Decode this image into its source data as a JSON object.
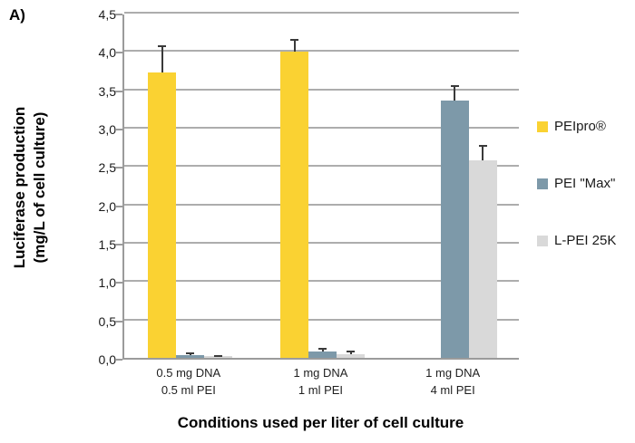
{
  "panel_label": "A)",
  "chart_data": {
    "type": "bar",
    "title": "",
    "xlabel": "Conditions used per liter of cell culture",
    "ylabel": "Luciferase production (mg/L of cell culture)",
    "ylabel_lines": [
      "Luciferase production",
      "(mg/L of cell culture)"
    ],
    "ylim": [
      0,
      4.5
    ],
    "ytick_step": 0.5,
    "ytick_labels": [
      "0,0",
      "0,5",
      "1,0",
      "1,5",
      "2,0",
      "2,5",
      "3,0",
      "3,5",
      "4,0",
      "4,5"
    ],
    "decimal_separator": ",",
    "grid": true,
    "legend_position": "right",
    "categories": [
      [
        "0.5 mg DNA",
        "0.5 ml PEI"
      ],
      [
        "1 mg DNA",
        "1 ml PEI"
      ],
      [
        "1 mg DNA",
        "4 ml PEI"
      ]
    ],
    "series": [
      {
        "name": "PEIpro®",
        "color": "#FAD232",
        "values": [
          3.72,
          3.99,
          null
        ],
        "errors": [
          0.36,
          0.17,
          null
        ]
      },
      {
        "name": "PEI \"Max\"",
        "color": "#7D99A9",
        "values": [
          0.04,
          0.08,
          3.36
        ],
        "errors": [
          0.03,
          0.05,
          0.2
        ]
      },
      {
        "name": "L-PEI 25K",
        "color": "#D9D9D9",
        "values": [
          0.02,
          0.05,
          2.58
        ],
        "errors": [
          0.02,
          0.05,
          0.19
        ]
      }
    ],
    "colors": {
      "gridline": "#ADADAD",
      "axis": "#9B9B9B",
      "error_bar": "#3A3A3A",
      "text": "#1A1A1A"
    }
  }
}
